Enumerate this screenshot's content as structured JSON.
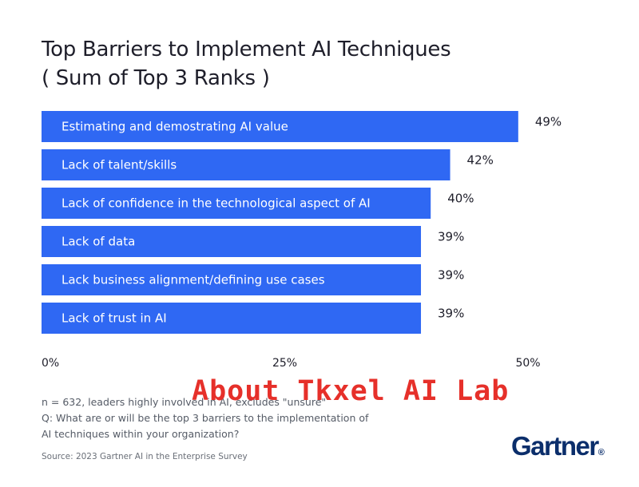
{
  "chart_data": {
    "type": "bar",
    "orientation": "horizontal",
    "title": "Top Barriers to Implement AI Techniques",
    "subtitle": "( Sum of Top 3 Ranks )",
    "categories": [
      "Estimating and demostrating AI value",
      "Lack of talent/skills",
      "Lack of confidence in the technological aspect of AI",
      "Lack of data",
      "Lack business alignment/defining use cases",
      "Lack of trust in AI"
    ],
    "values": [
      49,
      42,
      40,
      39,
      39,
      39
    ],
    "value_labels": [
      "49%",
      "42%",
      "40%",
      "39%",
      "39%",
      "39%"
    ],
    "xlim": [
      0,
      50
    ],
    "xticks": [
      "0%",
      "25%",
      "50%"
    ],
    "grid": false,
    "bar_color": "#2f68f3"
  },
  "notes": {
    "n": "n = 632, leaders highly involved in AI, excludes \"unsure\"",
    "question": "Q: What are or will be the top 3 barriers to the implementation of AI techniques within your organization?",
    "source": "Source: 2023 Gartner AI in the Enterprise Survey"
  },
  "overlay_text": "About Tkxel AI Lab",
  "logo": {
    "text": "Gartner",
    "mark": "®"
  }
}
